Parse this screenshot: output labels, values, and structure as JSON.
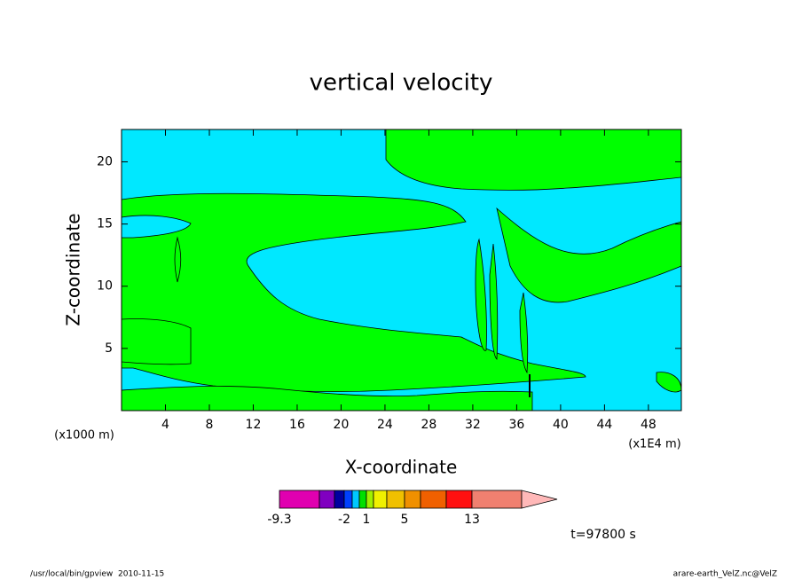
{
  "chart_data": {
    "type": "contour",
    "title": "vertical velocity",
    "x_label": "X-coordinate",
    "y_label": "Z-coordinate",
    "x_unit": "(x1E4 m)",
    "y_unit": "(x1000 m)",
    "xlim": [
      0,
      51
    ],
    "ylim": [
      0,
      22.6
    ],
    "xticks": [
      4,
      8,
      12,
      16,
      20,
      24,
      28,
      32,
      36,
      40,
      44,
      48
    ],
    "yticks": [
      5,
      10,
      15,
      20
    ],
    "colorbar": {
      "colors": [
        "#e000b0",
        "#8000c0",
        "#0000a0",
        "#0040ff",
        "#00c8ff",
        "#00e000",
        "#a0f000",
        "#f0f000",
        "#f0c000",
        "#f09000",
        "#f06000",
        "#ff1010",
        "#f08070",
        "#ffb8b8"
      ],
      "labels": [
        -9.3,
        -2,
        1,
        5,
        13
      ]
    },
    "time_label": "t=97800 s"
  },
  "footer": {
    "left": "/usr/local/bin/gpview  2010-11-15",
    "right": "arare-earth_VelZ.nc@VelZ"
  }
}
